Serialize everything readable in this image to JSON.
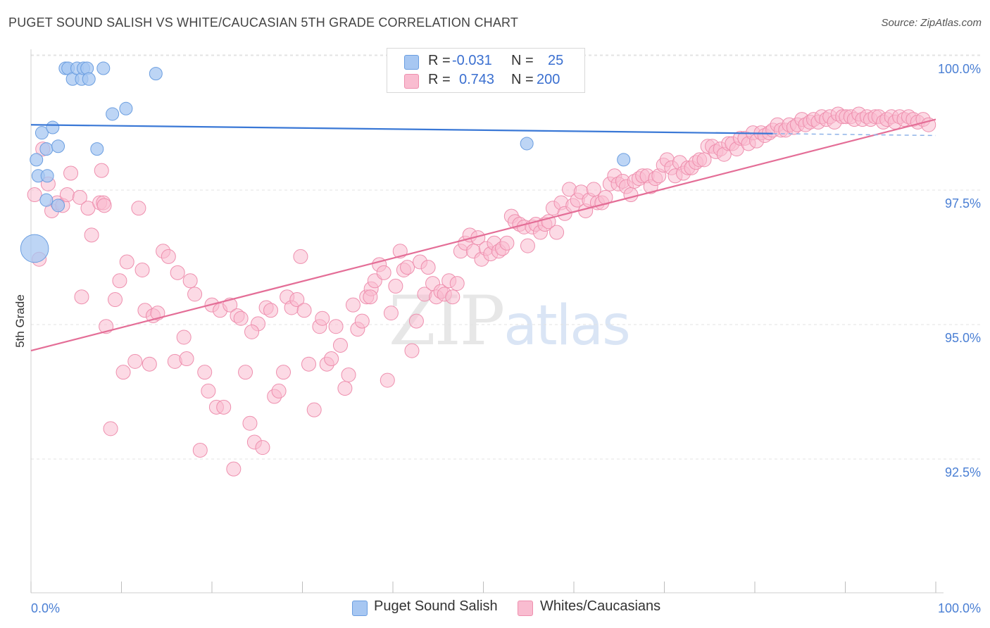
{
  "title": "PUGET SOUND SALISH VS WHITE/CAUCASIAN 5TH GRADE CORRELATION CHART",
  "source": "Source: ZipAtlas.com",
  "watermark": {
    "zip": "ZIP",
    "atlas": "atlas"
  },
  "legend": {
    "r_label": "R =",
    "n_label": "N =",
    "rows": [
      {
        "name": "Puget Sound Salish",
        "r": "-0.031",
        "n": "25",
        "color": "#a7c7f2",
        "stroke": "#6b9ee0"
      },
      {
        "name": "Whites/Caucasians",
        "r": "0.743",
        "n": "200",
        "color": "#f9bcd0",
        "stroke": "#ee8fae"
      }
    ]
  },
  "chart_data": {
    "type": "scatter",
    "title": "PUGET SOUND SALISH VS WHITE/CAUCASIAN 5TH GRADE CORRELATION CHART",
    "xlabel": "",
    "ylabel": "5th Grade",
    "xlim": [
      0,
      100
    ],
    "ylim": [
      90.2,
      100.5
    ],
    "x_ticks": [
      "0.0%",
      "100.0%"
    ],
    "y_ticks": [
      {
        "value": 100.0,
        "label": "100.0%"
      },
      {
        "value": 97.5,
        "label": "97.5%"
      },
      {
        "value": 95.0,
        "label": "95.0%"
      },
      {
        "value": 92.5,
        "label": "92.5%"
      }
    ],
    "series": [
      {
        "name": "Puget Sound Salish",
        "color": "#a7c7f2",
        "stroke": "#6b9ee0",
        "trend": {
          "x0": 0,
          "y0": 98.95,
          "x1": 100,
          "y1": 98.75,
          "solid_until": 82
        },
        "points": [
          [
            0.4,
            96.65,
            2.2
          ],
          [
            0.6,
            98.3,
            1
          ],
          [
            0.8,
            98.0,
            1
          ],
          [
            1.2,
            98.8,
            1
          ],
          [
            1.7,
            97.55,
            1
          ],
          [
            1.7,
            98.5,
            1
          ],
          [
            1.8,
            98.0,
            1
          ],
          [
            2.4,
            98.9,
            1
          ],
          [
            3.0,
            97.45,
            1
          ],
          [
            3.0,
            98.55,
            1
          ],
          [
            3.8,
            100.0,
            1
          ],
          [
            4.1,
            100.0,
            1
          ],
          [
            4.6,
            99.8,
            1
          ],
          [
            5.1,
            100.0,
            1
          ],
          [
            5.6,
            99.8,
            1
          ],
          [
            5.8,
            100.0,
            1
          ],
          [
            6.2,
            100.0,
            1
          ],
          [
            6.4,
            99.8,
            1
          ],
          [
            7.3,
            98.5,
            1
          ],
          [
            8.0,
            100.0,
            1
          ],
          [
            9.0,
            99.15,
            1
          ],
          [
            10.5,
            99.25,
            1
          ],
          [
            13.8,
            99.9,
            1
          ],
          [
            54.8,
            98.6,
            1
          ],
          [
            65.5,
            98.3,
            1
          ]
        ]
      },
      {
        "name": "Whites/Caucasians",
        "color": "#f9bcd0",
        "stroke": "#ee8fae",
        "trend": {
          "x0": 0,
          "y0": 94.75,
          "x1": 100,
          "y1": 99.05
        },
        "points": [
          [
            0.4,
            97.65
          ],
          [
            0.9,
            96.45
          ],
          [
            1.3,
            98.5
          ],
          [
            1.9,
            97.85
          ],
          [
            2.3,
            97.35
          ],
          [
            2.9,
            97.5
          ],
          [
            3.5,
            97.45
          ],
          [
            4.0,
            97.65
          ],
          [
            4.4,
            98.05
          ],
          [
            5.4,
            97.6
          ],
          [
            5.6,
            95.75
          ],
          [
            6.3,
            97.4
          ],
          [
            6.7,
            96.9
          ],
          [
            7.6,
            97.5
          ],
          [
            7.8,
            98.1
          ],
          [
            8.0,
            97.5
          ],
          [
            8.3,
            95.2
          ],
          [
            8.8,
            93.3
          ],
          [
            9.3,
            95.7
          ],
          [
            9.8,
            96.05
          ],
          [
            10.2,
            94.35
          ],
          [
            10.6,
            96.4
          ],
          [
            11.5,
            94.55
          ],
          [
            11.9,
            97.4
          ],
          [
            12.3,
            96.25
          ],
          [
            12.6,
            95.5
          ],
          [
            13.1,
            94.5
          ],
          [
            13.5,
            95.4
          ],
          [
            14.0,
            95.45
          ],
          [
            14.6,
            96.6
          ],
          [
            15.2,
            96.5
          ],
          [
            15.9,
            94.55
          ],
          [
            16.2,
            96.2
          ],
          [
            16.9,
            95.0
          ],
          [
            17.2,
            94.6
          ],
          [
            17.6,
            96.05
          ],
          [
            18.1,
            95.8
          ],
          [
            18.7,
            92.9
          ],
          [
            19.2,
            94.35
          ],
          [
            19.6,
            94.0
          ],
          [
            20.0,
            95.6
          ],
          [
            20.5,
            93.7
          ],
          [
            20.9,
            95.5
          ],
          [
            21.3,
            93.7
          ],
          [
            22.0,
            95.6
          ],
          [
            22.4,
            92.55
          ],
          [
            22.8,
            95.4
          ],
          [
            23.2,
            95.35
          ],
          [
            23.7,
            94.35
          ],
          [
            24.2,
            93.4
          ],
          [
            24.7,
            93.05
          ],
          [
            25.1,
            95.25
          ],
          [
            25.6,
            92.95
          ],
          [
            26.0,
            95.55
          ],
          [
            26.5,
            95.5
          ],
          [
            26.9,
            93.9
          ],
          [
            27.4,
            94.0
          ],
          [
            27.9,
            94.35
          ],
          [
            28.3,
            95.75
          ],
          [
            28.8,
            95.55
          ],
          [
            29.4,
            95.7
          ],
          [
            29.8,
            96.5
          ],
          [
            30.2,
            95.5
          ],
          [
            30.7,
            94.5
          ],
          [
            31.3,
            93.65
          ],
          [
            31.9,
            95.2
          ],
          [
            32.2,
            95.35
          ],
          [
            32.7,
            94.5
          ],
          [
            33.2,
            94.6
          ],
          [
            33.7,
            95.2
          ],
          [
            34.2,
            94.85
          ],
          [
            34.7,
            94.05
          ],
          [
            35.1,
            94.3
          ],
          [
            35.6,
            95.6
          ],
          [
            36.1,
            95.15
          ],
          [
            36.6,
            95.3
          ],
          [
            37.1,
            95.75
          ],
          [
            37.6,
            95.9
          ],
          [
            38.0,
            96.05
          ],
          [
            38.5,
            96.35
          ],
          [
            39.0,
            96.2
          ],
          [
            39.4,
            94.2
          ],
          [
            39.8,
            95.45
          ],
          [
            40.3,
            95.95
          ],
          [
            40.8,
            96.6
          ],
          [
            41.2,
            96.25
          ],
          [
            41.6,
            96.3
          ],
          [
            42.1,
            94.75
          ],
          [
            42.6,
            95.3
          ],
          [
            43.0,
            96.4
          ],
          [
            43.5,
            95.8
          ],
          [
            43.9,
            96.3
          ],
          [
            44.4,
            96.0
          ],
          [
            44.8,
            95.75
          ],
          [
            45.3,
            95.85
          ],
          [
            45.7,
            95.8
          ],
          [
            46.2,
            96.05
          ],
          [
            46.6,
            95.75
          ],
          [
            47.1,
            96.0
          ],
          [
            47.5,
            96.6
          ],
          [
            48.0,
            96.75
          ],
          [
            48.5,
            96.9
          ],
          [
            48.9,
            96.6
          ],
          [
            49.4,
            96.85
          ],
          [
            49.8,
            96.45
          ],
          [
            50.3,
            96.65
          ],
          [
            50.8,
            96.55
          ],
          [
            51.2,
            96.75
          ],
          [
            51.7,
            96.6
          ],
          [
            52.1,
            96.65
          ],
          [
            52.6,
            96.75
          ],
          [
            53.1,
            97.25
          ],
          [
            53.5,
            97.15
          ],
          [
            54.0,
            97.1
          ],
          [
            54.5,
            97.05
          ],
          [
            54.9,
            96.7
          ],
          [
            55.4,
            97.05
          ],
          [
            55.8,
            97.1
          ],
          [
            56.3,
            96.95
          ],
          [
            56.8,
            97.1
          ],
          [
            57.2,
            97.15
          ],
          [
            57.7,
            97.4
          ],
          [
            58.1,
            96.95
          ],
          [
            58.6,
            97.5
          ],
          [
            59.0,
            97.3
          ],
          [
            59.5,
            97.75
          ],
          [
            59.9,
            97.45
          ],
          [
            60.4,
            97.55
          ],
          [
            60.8,
            97.7
          ],
          [
            61.3,
            97.35
          ],
          [
            61.7,
            97.55
          ],
          [
            62.2,
            97.75
          ],
          [
            62.6,
            97.5
          ],
          [
            63.1,
            97.5
          ],
          [
            63.5,
            97.6
          ],
          [
            64.0,
            97.85
          ],
          [
            64.5,
            98.0
          ],
          [
            64.9,
            97.85
          ],
          [
            65.4,
            97.9
          ],
          [
            65.8,
            97.8
          ],
          [
            66.3,
            97.65
          ],
          [
            66.7,
            97.9
          ],
          [
            67.2,
            97.95
          ],
          [
            67.6,
            98.0
          ],
          [
            68.1,
            98.0
          ],
          [
            68.5,
            97.8
          ],
          [
            69.0,
            97.95
          ],
          [
            69.4,
            98.0
          ],
          [
            69.9,
            98.2
          ],
          [
            70.3,
            98.3
          ],
          [
            70.8,
            98.15
          ],
          [
            71.2,
            98.0
          ],
          [
            71.7,
            98.25
          ],
          [
            72.1,
            98.05
          ],
          [
            72.6,
            98.15
          ],
          [
            73.0,
            98.15
          ],
          [
            73.5,
            98.25
          ],
          [
            73.9,
            98.3
          ],
          [
            74.4,
            98.3
          ],
          [
            74.8,
            98.55
          ],
          [
            75.3,
            98.55
          ],
          [
            75.7,
            98.45
          ],
          [
            76.2,
            98.5
          ],
          [
            76.6,
            98.4
          ],
          [
            77.1,
            98.6
          ],
          [
            77.5,
            98.6
          ],
          [
            78.0,
            98.5
          ],
          [
            78.4,
            98.7
          ],
          [
            78.9,
            98.7
          ],
          [
            79.3,
            98.6
          ],
          [
            79.8,
            98.8
          ],
          [
            80.2,
            98.65
          ],
          [
            80.7,
            98.8
          ],
          [
            81.1,
            98.75
          ],
          [
            81.6,
            98.8
          ],
          [
            82.0,
            98.85
          ],
          [
            82.5,
            98.95
          ],
          [
            82.9,
            98.85
          ],
          [
            83.4,
            98.85
          ],
          [
            83.8,
            98.95
          ],
          [
            84.3,
            98.9
          ],
          [
            84.7,
            98.95
          ],
          [
            85.2,
            99.05
          ],
          [
            85.6,
            98.95
          ],
          [
            86.1,
            99.0
          ],
          [
            86.5,
            99.05
          ],
          [
            87.0,
            99.0
          ],
          [
            87.4,
            99.1
          ],
          [
            87.9,
            99.05
          ],
          [
            88.3,
            99.1
          ],
          [
            88.8,
            99.0
          ],
          [
            89.2,
            99.15
          ],
          [
            89.7,
            99.1
          ],
          [
            90.1,
            99.1
          ],
          [
            90.6,
            99.1
          ],
          [
            91.0,
            99.05
          ],
          [
            91.5,
            99.15
          ],
          [
            91.9,
            99.05
          ],
          [
            92.4,
            99.1
          ],
          [
            92.8,
            99.05
          ],
          [
            93.3,
            99.1
          ],
          [
            93.7,
            99.1
          ],
          [
            94.2,
            99.0
          ],
          [
            94.6,
            99.05
          ],
          [
            95.1,
            99.1
          ],
          [
            95.5,
            99.0
          ],
          [
            96.0,
            99.1
          ],
          [
            96.5,
            99.05
          ],
          [
            97.0,
            99.1
          ],
          [
            97.5,
            99.05
          ],
          [
            98.0,
            99.0
          ],
          [
            98.6,
            99.05
          ],
          [
            99.2,
            98.95
          ],
          [
            37.5,
            95.75
          ],
          [
            8.1,
            97.45
          ],
          [
            24.4,
            95.1
          ]
        ]
      }
    ]
  }
}
